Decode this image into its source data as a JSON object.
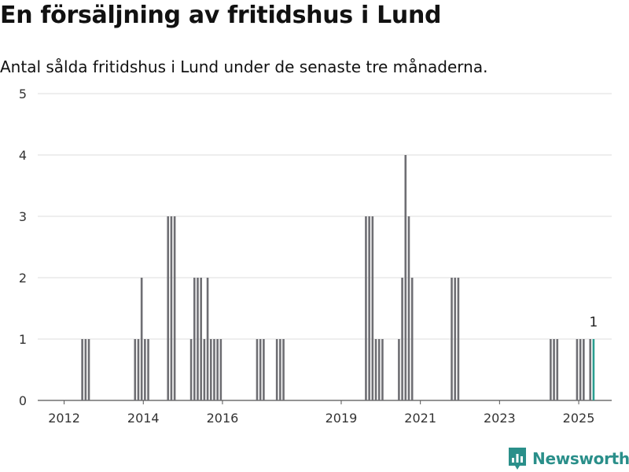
{
  "title": "En försäljning av fritidshus i Lund",
  "subtitle": "Antal sålda fritidshus i Lund under de senaste tre månaderna.",
  "brand": "Newsworthy",
  "colors": {
    "bar": "#6e6e73",
    "highlight": "#2a9d8f",
    "grid": "#dddddd",
    "brand": "#2a8f8a"
  },
  "chart_data": {
    "type": "bar",
    "title": "En försäljning av fritidshus i Lund",
    "subtitle": "Antal sålda fritidshus i Lund under de senaste tre månaderna.",
    "xlabel": "",
    "ylabel": "",
    "ylim": [
      0,
      5
    ],
    "yticks": [
      0,
      1,
      2,
      3,
      4,
      5
    ],
    "xticks": [
      2012,
      2014,
      2016,
      2019,
      2021,
      2023,
      2025
    ],
    "grid": true,
    "legend": "none",
    "highlight_label": "1",
    "x": [
      "2012-06",
      "2012-07",
      "2012-08",
      "2013-10",
      "2013-11",
      "2013-12",
      "2014-01",
      "2014-02",
      "2014-08",
      "2014-09",
      "2014-10",
      "2015-03",
      "2015-04",
      "2015-05",
      "2015-06",
      "2015-07",
      "2015-08",
      "2015-09",
      "2015-10",
      "2015-11",
      "2015-12",
      "2016-11",
      "2016-12",
      "2017-01",
      "2017-05",
      "2017-06",
      "2017-07",
      "2019-08",
      "2019-09",
      "2019-10",
      "2019-11",
      "2019-12",
      "2020-01",
      "2020-06",
      "2020-07",
      "2020-08",
      "2020-09",
      "2020-10",
      "2021-10",
      "2021-11",
      "2021-12",
      "2024-04",
      "2024-05",
      "2024-06",
      "2024-12",
      "2025-01",
      "2025-02",
      "2025-04",
      "2025-05"
    ],
    "values": [
      1,
      1,
      1,
      1,
      1,
      2,
      1,
      1,
      3,
      3,
      3,
      1,
      2,
      2,
      2,
      1,
      2,
      1,
      1,
      1,
      1,
      1,
      1,
      1,
      1,
      1,
      1,
      3,
      3,
      3,
      1,
      1,
      1,
      1,
      2,
      4,
      3,
      2,
      2,
      2,
      2,
      1,
      1,
      1,
      1,
      1,
      1,
      1,
      1
    ],
    "highlight": "2025-05"
  }
}
